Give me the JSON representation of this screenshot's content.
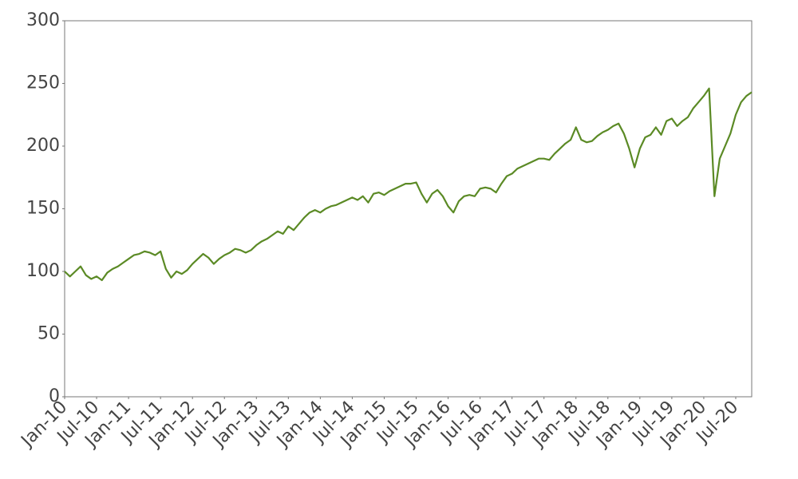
{
  "chart_data": {
    "type": "line",
    "x": [
      "2010-01",
      "2010-02",
      "2010-03",
      "2010-04",
      "2010-05",
      "2010-06",
      "2010-07",
      "2010-08",
      "2010-09",
      "2010-10",
      "2010-11",
      "2010-12",
      "2011-01",
      "2011-02",
      "2011-03",
      "2011-04",
      "2011-05",
      "2011-06",
      "2011-07",
      "2011-08",
      "2011-09",
      "2011-10",
      "2011-11",
      "2011-12",
      "2012-01",
      "2012-02",
      "2012-03",
      "2012-04",
      "2012-05",
      "2012-06",
      "2012-07",
      "2012-08",
      "2012-09",
      "2012-10",
      "2012-11",
      "2012-12",
      "2013-01",
      "2013-02",
      "2013-03",
      "2013-04",
      "2013-05",
      "2013-06",
      "2013-07",
      "2013-08",
      "2013-09",
      "2013-10",
      "2013-11",
      "2013-12",
      "2014-01",
      "2014-02",
      "2014-03",
      "2014-04",
      "2014-05",
      "2014-06",
      "2014-07",
      "2014-08",
      "2014-09",
      "2014-10",
      "2014-11",
      "2014-12",
      "2015-01",
      "2015-02",
      "2015-03",
      "2015-04",
      "2015-05",
      "2015-06",
      "2015-07",
      "2015-08",
      "2015-09",
      "2015-10",
      "2015-11",
      "2015-12",
      "2016-01",
      "2016-02",
      "2016-03",
      "2016-04",
      "2016-05",
      "2016-06",
      "2016-07",
      "2016-08",
      "2016-09",
      "2016-10",
      "2016-11",
      "2016-12",
      "2017-01",
      "2017-02",
      "2017-03",
      "2017-04",
      "2017-05",
      "2017-06",
      "2017-07",
      "2017-08",
      "2017-09",
      "2017-10",
      "2017-11",
      "2017-12",
      "2018-01",
      "2018-02",
      "2018-03",
      "2018-04",
      "2018-05",
      "2018-06",
      "2018-07",
      "2018-08",
      "2018-09",
      "2018-10",
      "2018-11",
      "2018-12",
      "2019-01",
      "2019-02",
      "2019-03",
      "2019-04",
      "2019-05",
      "2019-06",
      "2019-07",
      "2019-08",
      "2019-09",
      "2019-10",
      "2019-11",
      "2019-12",
      "2020-01",
      "2020-02",
      "2020-03",
      "2020-04",
      "2020-05",
      "2020-06",
      "2020-07",
      "2020-08",
      "2020-09",
      "2020-10"
    ],
    "series": [
      {
        "color": "#5b8a25",
        "values": [
          100,
          96,
          100,
          104,
          97,
          94,
          96,
          93,
          99,
          102,
          104,
          107,
          110,
          113,
          114,
          116,
          115,
          113,
          116,
          102,
          95,
          100,
          98,
          101,
          106,
          110,
          114,
          111,
          106,
          110,
          113,
          115,
          118,
          117,
          115,
          117,
          121,
          124,
          126,
          129,
          132,
          130,
          136,
          133,
          138,
          143,
          147,
          149,
          147,
          150,
          152,
          153,
          155,
          157,
          159,
          157,
          160,
          155,
          162,
          163,
          161,
          164,
          166,
          168,
          170,
          170,
          171,
          162,
          155,
          162,
          165,
          160,
          152,
          147,
          156,
          160,
          161,
          160,
          166,
          167,
          166,
          163,
          170,
          176,
          178,
          182,
          184,
          186,
          188,
          190,
          190,
          189,
          194,
          198,
          202,
          205,
          215,
          205,
          203,
          204,
          208,
          211,
          213,
          216,
          218,
          210,
          198,
          183,
          198,
          207,
          209,
          215,
          209,
          220,
          222,
          216,
          220,
          223,
          230,
          235,
          240,
          246,
          160,
          190,
          200,
          210,
          225,
          235,
          240,
          243
        ]
      }
    ],
    "xlim": [
      "2010-01",
      "2020-10"
    ],
    "xticks": [
      {
        "value": "2010-01",
        "label": "Jan-10"
      },
      {
        "value": "2010-07",
        "label": "Jul-10"
      },
      {
        "value": "2011-01",
        "label": "Jan-11"
      },
      {
        "value": "2011-07",
        "label": "Jul-11"
      },
      {
        "value": "2012-01",
        "label": "Jan-12"
      },
      {
        "value": "2012-07",
        "label": "Jul-12"
      },
      {
        "value": "2013-01",
        "label": "Jan-13"
      },
      {
        "value": "2013-07",
        "label": "Jul-13"
      },
      {
        "value": "2014-01",
        "label": "Jan-14"
      },
      {
        "value": "2014-07",
        "label": "Jul-14"
      },
      {
        "value": "2015-01",
        "label": "Jan-15"
      },
      {
        "value": "2015-07",
        "label": "Jul-15"
      },
      {
        "value": "2016-01",
        "label": "Jan-16"
      },
      {
        "value": "2016-07",
        "label": "Jul-16"
      },
      {
        "value": "2017-01",
        "label": "Jan-17"
      },
      {
        "value": "2017-07",
        "label": "Jul-17"
      },
      {
        "value": "2018-01",
        "label": "Jan-18"
      },
      {
        "value": "2018-07",
        "label": "Jul-18"
      },
      {
        "value": "2019-01",
        "label": "Jan-19"
      },
      {
        "value": "2019-07",
        "label": "Jul-19"
      },
      {
        "value": "2020-01",
        "label": "Jan-20"
      },
      {
        "value": "2020-07",
        "label": "Jul-20"
      }
    ],
    "ylim": [
      0,
      300
    ],
    "yticks": [
      0,
      50,
      100,
      150,
      200,
      250,
      300
    ],
    "grid": false
  }
}
